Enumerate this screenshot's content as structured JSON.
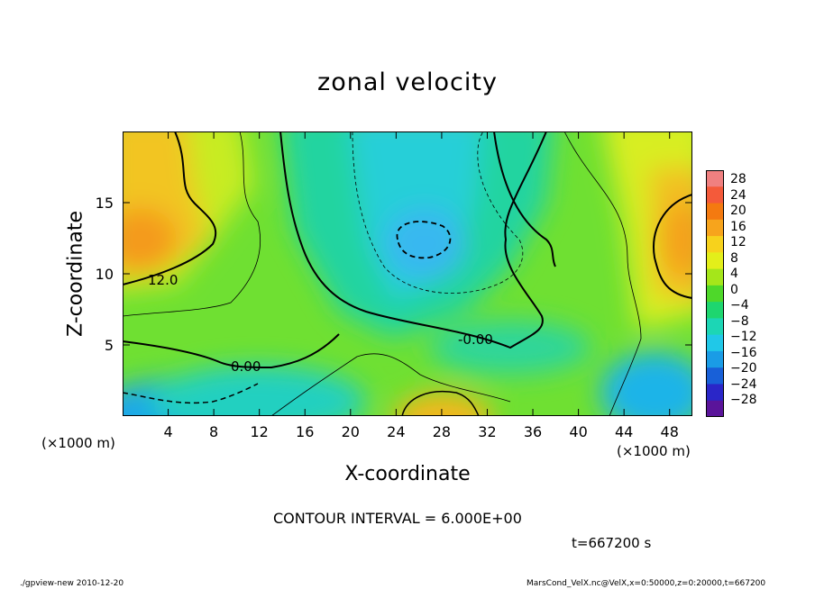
{
  "chart_data": {
    "type": "heatmap",
    "title": "zonal velocity",
    "xlabel": "X-coordinate",
    "ylabel": "Z-coordinate",
    "x_unit_left": "(×1000 m)",
    "x_unit_right": "(×1000 m)",
    "xlim": [
      0,
      50
    ],
    "ylim": [
      0,
      20
    ],
    "x_ticks": [
      4,
      8,
      12,
      16,
      20,
      24,
      28,
      32,
      36,
      40,
      44,
      48
    ],
    "y_ticks": [
      5,
      10,
      15
    ],
    "contour_labels": [
      "12.0",
      "0.00",
      "-0.00"
    ],
    "colorbar": {
      "labels": [
        "28",
        "24",
        "20",
        "16",
        "12",
        "8",
        "4",
        "0",
        "−4",
        "−8",
        "−12",
        "−16",
        "−20",
        "−24",
        "−28"
      ],
      "colors": [
        "#f08080",
        "#f45a3a",
        "#f47a10",
        "#f7a41c",
        "#f7d21c",
        "#e3ef1a",
        "#a5e61a",
        "#4ed82a",
        "#1ed66f",
        "#1cd6b5",
        "#20c8e8",
        "#1a9ce6",
        "#1860d8",
        "#2a26c8",
        "#5a149a"
      ]
    },
    "contour_interval": "CONTOUR INTERVAL = 6.000E+00",
    "time_label": "t=667200 s",
    "footer_left": "./gpview-new  2010-12-20",
    "footer_right": "MarsCond_VelX.nc@VelX,x=0:50000,z=0:20000,t=667200"
  }
}
